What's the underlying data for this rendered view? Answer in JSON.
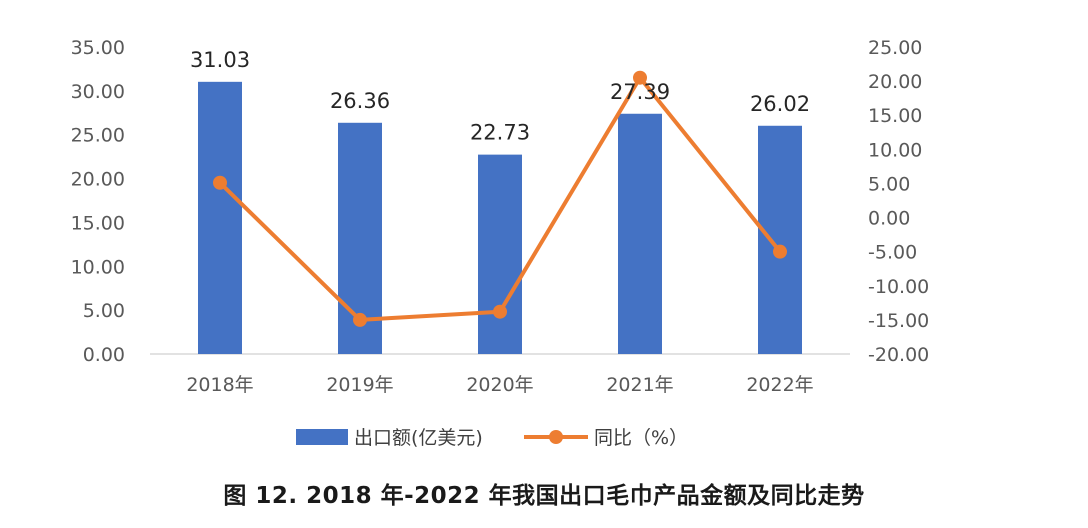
{
  "chart_data": {
    "type": "bar+line",
    "categories": [
      "2018年",
      "2019年",
      "2020年",
      "2021年",
      "2022年"
    ],
    "series": [
      {
        "name": "出口额(亿美元",
        "type": "bar",
        "axis": "left",
        "values": [
          31.03,
          26.36,
          22.73,
          27.39,
          26.02
        ],
        "data_labels": [
          "31.03",
          "26.36",
          "22.73",
          "27.39",
          "26.02"
        ],
        "color": "#4472c4"
      },
      {
        "name": "同比（%）",
        "type": "line",
        "axis": "right",
        "values": [
          5.1,
          -15.0,
          -13.8,
          20.5,
          -5.0
        ],
        "color": "#ed7d31"
      }
    ],
    "left_axis": {
      "range": [
        0,
        35
      ],
      "ticks": [
        "0.00",
        "5.00",
        "10.00",
        "15.00",
        "20.00",
        "25.00",
        "30.00",
        "35.00"
      ]
    },
    "right_axis": {
      "range": [
        -20,
        25
      ],
      "ticks": [
        "-20.00",
        "-15.00",
        "-10.00",
        "-5.00",
        "0.00",
        "5.00",
        "10.00",
        "15.00",
        "20.00",
        "25.00"
      ]
    },
    "legend_position": "bottom",
    "grid": false
  },
  "legend": {
    "bar_label": "出口额(亿美元)",
    "line_label": "同比（%）"
  },
  "caption": "图 12. 2018 年-2022 年我国出口毛巾产品金额及同比走势"
}
